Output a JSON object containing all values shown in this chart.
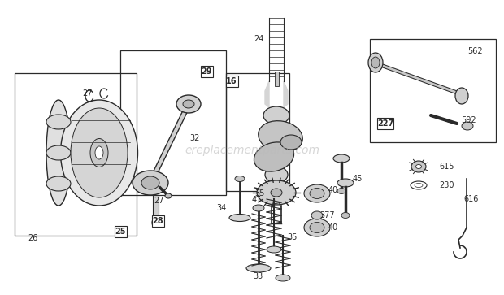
{
  "bg_color": "#ffffff",
  "line_color": "#2a2a2a",
  "watermark": "ereplacementparts.com",
  "watermark_color": "#bbbbbb",
  "fig_w": 6.2,
  "fig_h": 3.63,
  "dpi": 100
}
